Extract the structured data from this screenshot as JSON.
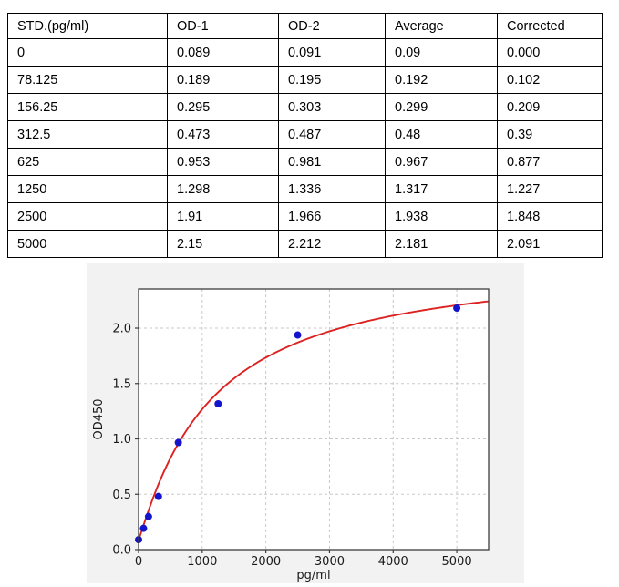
{
  "table": {
    "columns": [
      "STD.(pg/ml)",
      "OD-1",
      "OD-2",
      "Average",
      "Corrected"
    ],
    "rows": [
      [
        "0",
        "0.089",
        "0.091",
        "0.09",
        "0.000"
      ],
      [
        "78.125",
        "0.189",
        "0.195",
        "0.192",
        "0.102"
      ],
      [
        "156.25",
        "0.295",
        "0.303",
        "0.299",
        "0.209"
      ],
      [
        "312.5",
        "0.473",
        "0.487",
        "0.48",
        "0.39"
      ],
      [
        "625",
        "0.953",
        "0.981",
        "0.967",
        "0.877"
      ],
      [
        "1250",
        "1.298",
        "1.336",
        "1.317",
        "1.227"
      ],
      [
        "2500",
        "1.91",
        "1.966",
        "1.938",
        "1.848"
      ],
      [
        "5000",
        "2.15",
        "2.212",
        "2.181",
        "2.091"
      ]
    ]
  },
  "chart_data": {
    "type": "scatter",
    "title": "",
    "xlabel": "pg/ml",
    "ylabel": "OD450",
    "x": [
      0,
      78.125,
      156.25,
      312.5,
      625,
      1250,
      2500,
      5000
    ],
    "y": [
      0.09,
      0.192,
      0.299,
      0.48,
      0.967,
      1.317,
      1.938,
      2.181
    ],
    "fit_curve": {
      "type": "4PL",
      "a": 0.088,
      "b": 1.08,
      "c": 1150,
      "d": 2.64
    },
    "xlim": [
      0,
      5500
    ],
    "ylim": [
      0,
      2.354
    ],
    "xticks": [
      0,
      1000,
      2000,
      3000,
      4000,
      5000
    ],
    "yticks": [
      0.0,
      0.5,
      1.0,
      1.5,
      2.0
    ],
    "grid": true,
    "legend": "none",
    "colors": {
      "point": "#1414cc",
      "curve": "#dd2222",
      "grid": "#c8c8c8",
      "figure_bg": "#f2f2f2",
      "plot_bg": "#ffffff",
      "spine": "#3c3c3c",
      "text": "#1a1a1a"
    }
  }
}
